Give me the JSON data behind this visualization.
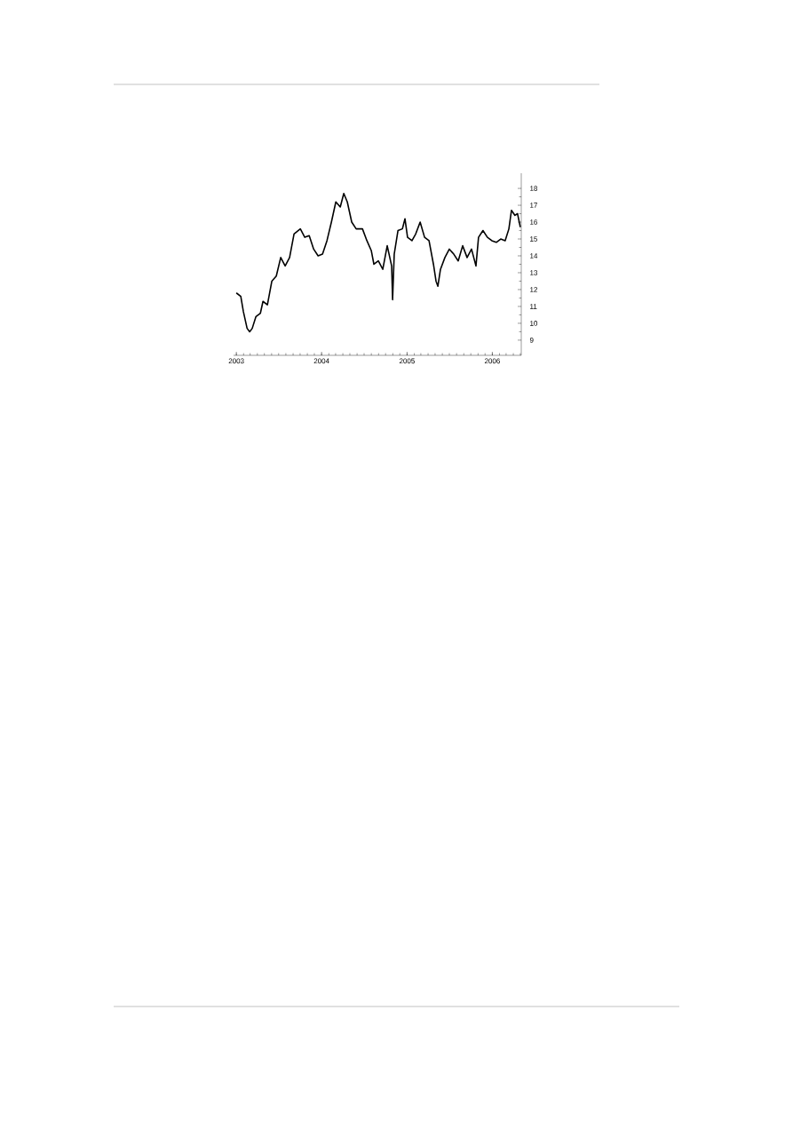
{
  "chart_data": {
    "type": "line",
    "marker": "none",
    "line_style": "solid",
    "xlim": [
      "2002-12-20",
      "2006-05-05"
    ],
    "xticks": [
      {
        "value": "2003-01-01",
        "label": "2003"
      },
      {
        "value": "2004-01-01",
        "label": "2004"
      },
      {
        "value": "2005-01-01",
        "label": "2005"
      },
      {
        "value": "2006-01-01",
        "label": "2006"
      }
    ],
    "ylim": [
      8.1,
      18.9
    ],
    "yticks": [
      9,
      10,
      11,
      12,
      13,
      14,
      15,
      16,
      17,
      18
    ],
    "x": [
      "2003-01-01",
      "2003-01-20",
      "2003-01-31",
      "2003-02-16",
      "2003-02-27",
      "2003-03-10",
      "2003-03-26",
      "2003-04-14",
      "2003-04-25",
      "2003-05-14",
      "2003-06-02",
      "2003-06-21",
      "2003-07-10",
      "2003-07-29",
      "2003-08-17",
      "2003-09-05",
      "2003-10-02",
      "2003-10-21",
      "2003-11-09",
      "2003-11-28",
      "2003-12-17",
      "2004-01-05",
      "2004-01-24",
      "2004-02-12",
      "2004-03-02",
      "2004-03-21",
      "2004-04-05",
      "2004-04-20",
      "2004-05-09",
      "2004-05-28",
      "2004-06-24",
      "2004-07-13",
      "2004-08-01",
      "2004-08-12",
      "2004-08-31",
      "2004-09-19",
      "2004-10-08",
      "2004-10-27",
      "2004-10-31",
      "2004-11-07",
      "2004-11-23",
      "2004-12-12",
      "2004-12-23",
      "2005-01-03",
      "2005-01-22",
      "2005-02-07",
      "2005-02-26",
      "2005-03-17",
      "2005-04-05",
      "2005-04-24",
      "2005-05-05",
      "2005-05-13",
      "2005-05-24",
      "2005-06-12",
      "2005-07-01",
      "2005-07-20",
      "2005-08-08",
      "2005-08-27",
      "2005-09-15",
      "2005-10-04",
      "2005-10-23",
      "2005-11-03",
      "2005-11-22",
      "2005-12-11",
      "2005-12-30",
      "2006-01-18",
      "2006-02-06",
      "2006-02-25",
      "2006-03-13",
      "2006-03-24",
      "2006-04-08",
      "2006-04-19",
      "2006-05-01"
    ],
    "series": [
      {
        "color": "#000000",
        "values": [
          11.8,
          11.6,
          10.7,
          9.7,
          9.5,
          9.7,
          10.4,
          10.6,
          11.3,
          11.1,
          12.5,
          12.8,
          13.9,
          13.4,
          13.9,
          15.3,
          15.6,
          15.1,
          15.2,
          14.4,
          14.0,
          14.1,
          14.9,
          16.0,
          17.2,
          16.9,
          17.7,
          17.2,
          16.0,
          15.6,
          15.6,
          14.9,
          14.3,
          13.5,
          13.7,
          13.2,
          14.6,
          13.4,
          11.4,
          14.1,
          15.5,
          15.6,
          16.2,
          15.1,
          14.9,
          15.3,
          16.0,
          15.1,
          14.9,
          13.5,
          12.5,
          12.2,
          13.2,
          13.9,
          14.4,
          14.1,
          13.7,
          14.6,
          13.9,
          14.4,
          13.4,
          15.1,
          15.5,
          15.1,
          14.9,
          14.8,
          15.0,
          14.9,
          15.6,
          16.7,
          16.4,
          16.5,
          15.7
        ]
      }
    ]
  }
}
